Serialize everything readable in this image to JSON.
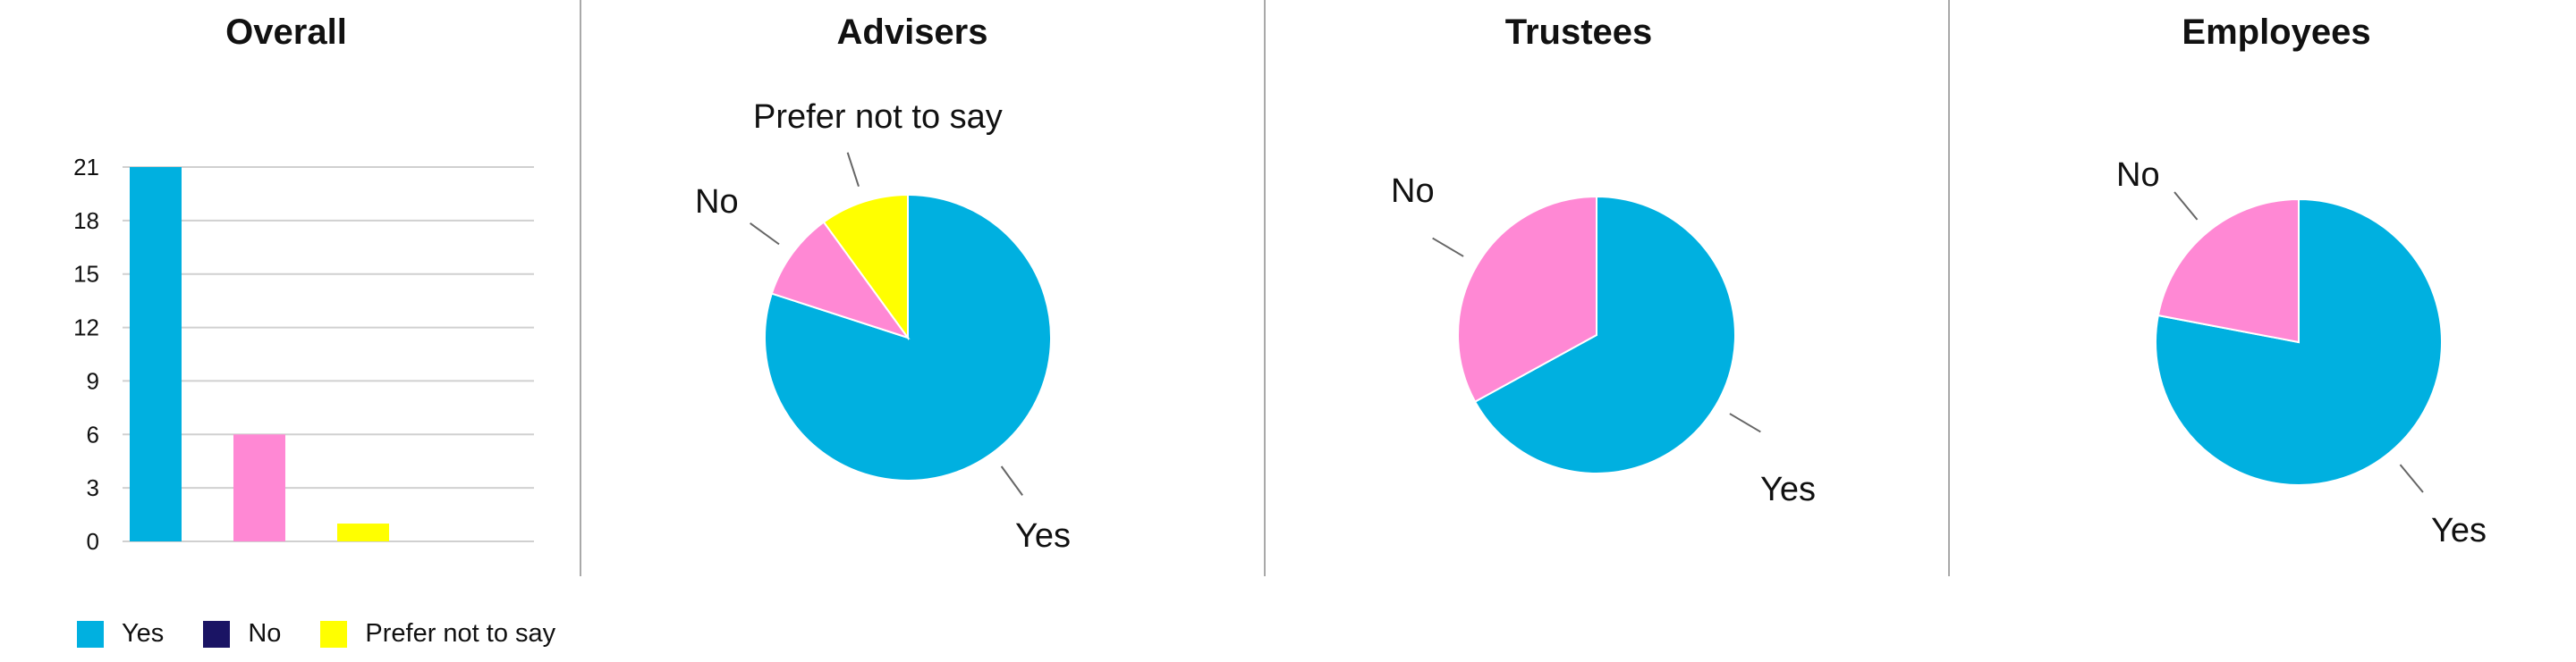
{
  "colors": {
    "yes": "#00b0e0",
    "no": "#1a1464",
    "no_pie": "#ff88d4",
    "prefer": "#ffff00",
    "grid": "#d0d0d0",
    "divider": "#a9a9a9",
    "leader": "#666666"
  },
  "legend": [
    {
      "label": "Yes",
      "color": "#00b0e0"
    },
    {
      "label": "No",
      "color": "#1a1464"
    },
    {
      "label": "Prefer not to say",
      "color": "#ffff00"
    }
  ],
  "chart_data": [
    {
      "type": "bar",
      "title": "Overall",
      "categories": [
        "Yes",
        "No",
        "Prefer not to say"
      ],
      "values": [
        21,
        6,
        1
      ],
      "colors": [
        "#00b0e0",
        "#ff88d4",
        "#ffff00"
      ],
      "ylim": [
        0,
        21
      ],
      "yticks": [
        0,
        3,
        6,
        9,
        12,
        15,
        18,
        21
      ],
      "grid": true,
      "legend": "bottom-left"
    },
    {
      "type": "pie",
      "title": "Advisers",
      "labels": [
        "Yes",
        "No",
        "Prefer not to say"
      ],
      "values": [
        80,
        10,
        10
      ],
      "colors": [
        "#00b0e0",
        "#ff88d4",
        "#ffff00"
      ]
    },
    {
      "type": "pie",
      "title": "Trustees",
      "labels": [
        "Yes",
        "No"
      ],
      "values": [
        67,
        33
      ],
      "colors": [
        "#00b0e0",
        "#ff88d4"
      ]
    },
    {
      "type": "pie",
      "title": "Employees",
      "labels": [
        "Yes",
        "No"
      ],
      "values": [
        78,
        22
      ],
      "colors": [
        "#00b0e0",
        "#ff88d4"
      ]
    }
  ]
}
